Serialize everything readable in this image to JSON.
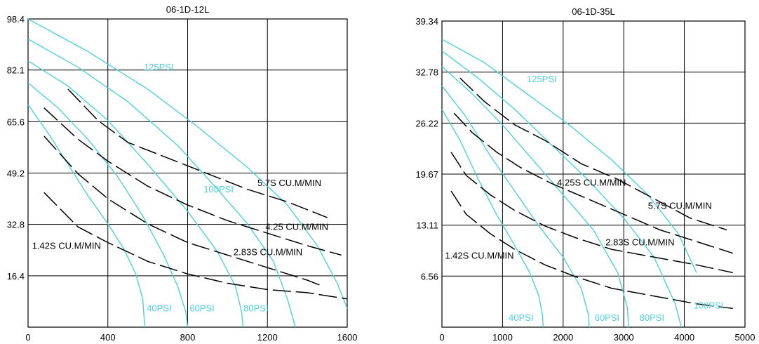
{
  "chart_data": [
    {
      "type": "line",
      "title": "06-1D-12L",
      "xlim": [
        0,
        1600
      ],
      "ylim": [
        0,
        98.4
      ],
      "x_ticks": [
        "0",
        "400",
        "800",
        "1200",
        "1600"
      ],
      "x_tick_values": [
        0,
        400,
        800,
        1200,
        1600
      ],
      "y_ticks": [
        "16.4",
        "32.8",
        "49.2",
        "65.6",
        "82.1",
        "98.4"
      ],
      "y_tick_values": [
        16.4,
        32.8,
        49.2,
        65.6,
        82.1,
        98.4
      ],
      "grid": true,
      "pressure_series": [
        {
          "name": "40PSI",
          "points": [
            [
              0,
              71
            ],
            [
              100,
              62
            ],
            [
              200,
              52
            ],
            [
              300,
              42
            ],
            [
              400,
              33
            ],
            [
              480,
              25
            ],
            [
              540,
              17
            ],
            [
              575,
              9
            ],
            [
              585,
              0
            ]
          ]
        },
        {
          "name": "60PSI",
          "points": [
            [
              0,
              78
            ],
            [
              150,
              70
            ],
            [
              300,
              60
            ],
            [
              450,
              48
            ],
            [
              580,
              35
            ],
            [
              680,
              23
            ],
            [
              750,
              13
            ],
            [
              790,
              5
            ],
            [
              800,
              0
            ]
          ]
        },
        {
          "name": "80PSI",
          "points": [
            [
              0,
              85
            ],
            [
              200,
              77
            ],
            [
              400,
              66
            ],
            [
              600,
              52
            ],
            [
              800,
              37
            ],
            [
              950,
              24
            ],
            [
              1040,
              13
            ],
            [
              1070,
              5
            ],
            [
              1078,
              0
            ]
          ]
        },
        {
          "name": "100PSI",
          "points": [
            [
              0,
              92
            ],
            [
              250,
              83
            ],
            [
              500,
              72
            ],
            [
              750,
              58
            ],
            [
              950,
              44
            ],
            [
              1100,
              33
            ],
            [
              1230,
              21
            ],
            [
              1300,
              9
            ],
            [
              1340,
              0
            ]
          ]
        },
        {
          "name": "125PSI",
          "points": [
            [
              0,
              98.4
            ],
            [
              300,
              88
            ],
            [
              600,
              76
            ],
            [
              850,
              64
            ],
            [
              1100,
              51
            ],
            [
              1300,
              39
            ],
            [
              1450,
              26
            ],
            [
              1550,
              14
            ],
            [
              1600,
              6
            ]
          ]
        }
      ],
      "flow_series": [
        {
          "name": "1.42S CU.M/MIN",
          "points": [
            [
              80,
              43
            ],
            [
              250,
              32
            ],
            [
              400,
              27
            ],
            [
              600,
              21
            ],
            [
              800,
              17
            ],
            [
              1000,
              14
            ],
            [
              1200,
              12
            ],
            [
              1400,
              11
            ],
            [
              1600,
              9
            ]
          ]
        },
        {
          "name": "2.83S CU.M/MIN",
          "points": [
            [
              80,
              61
            ],
            [
              250,
              49
            ],
            [
              400,
              41
            ],
            [
              600,
              33
            ],
            [
              800,
              27
            ],
            [
              1000,
              23
            ],
            [
              1200,
              19
            ],
            [
              1400,
              15
            ],
            [
              1480,
              13
            ]
          ]
        },
        {
          "name": "4.25 CU.M/MIN",
          "points": [
            [
              80,
              70
            ],
            [
              250,
              60
            ],
            [
              400,
              53
            ],
            [
              600,
              45
            ],
            [
              800,
              39
            ],
            [
              1000,
              34
            ],
            [
              1200,
              30
            ],
            [
              1400,
              26
            ],
            [
              1570,
              23
            ]
          ]
        },
        {
          "name": "5.7S CU.M/MIN",
          "points": [
            [
              200,
              76
            ],
            [
              350,
              66
            ],
            [
              500,
              59
            ],
            [
              700,
              54
            ],
            [
              900,
              49
            ],
            [
              1100,
              44
            ],
            [
              1300,
              40
            ],
            [
              1500,
              35
            ]
          ]
        }
      ],
      "pressure_labels": [
        {
          "text": "125PSI",
          "x": 580,
          "y": 82
        },
        {
          "text": "100PSI",
          "x": 880,
          "y": 43
        },
        {
          "text": "40PSI",
          "x": 595,
          "y": 5
        },
        {
          "text": "60PSI",
          "x": 810,
          "y": 5
        },
        {
          "text": "80PSI",
          "x": 1080,
          "y": 5
        }
      ],
      "flow_labels": [
        {
          "text": "5.7S CU.M/MIN",
          "x": 1150,
          "y": 45
        },
        {
          "text": "4.25 CU.M/MIN",
          "x": 1190,
          "y": 31
        },
        {
          "text": "2.83S CU.M/MIN",
          "x": 1030,
          "y": 23
        },
        {
          "text": "1.42S CU.M/MIN",
          "x": 20,
          "y": 25
        }
      ]
    },
    {
      "type": "line",
      "title": "06-1D-35L",
      "xlim": [
        0,
        5000
      ],
      "ylim": [
        0,
        39.34
      ],
      "x_ticks": [
        "0",
        "1000",
        "2000",
        "3000",
        "4000",
        "5000"
      ],
      "x_tick_values": [
        0,
        1000,
        2000,
        3000,
        4000,
        5000
      ],
      "y_ticks": [
        "6.56",
        "13.11",
        "19.67",
        "26.22",
        "32.78",
        "39.34"
      ],
      "y_tick_values": [
        6.56,
        13.11,
        19.67,
        26.22,
        32.78,
        39.34
      ],
      "grid": true,
      "pressure_series": [
        {
          "name": "40PSI",
          "points": [
            [
              0,
              28
            ],
            [
              300,
              24
            ],
            [
              600,
              19
            ],
            [
              900,
              14.5
            ],
            [
              1200,
              10.5
            ],
            [
              1450,
              7
            ],
            [
              1600,
              4
            ],
            [
              1660,
              1.5
            ],
            [
              1670,
              0
            ]
          ]
        },
        {
          "name": "60PSI",
          "points": [
            [
              0,
              31
            ],
            [
              400,
              27
            ],
            [
              800,
              22
            ],
            [
              1200,
              17.5
            ],
            [
              1600,
              13
            ],
            [
              2000,
              9
            ],
            [
              2300,
              5
            ],
            [
              2420,
              1.5
            ],
            [
              2430,
              0
            ]
          ]
        },
        {
          "name": "80PSI",
          "points": [
            [
              0,
              33.5
            ],
            [
              500,
              30
            ],
            [
              1000,
              26
            ],
            [
              1500,
              21.5
            ],
            [
              2000,
              17
            ],
            [
              2500,
              12.5
            ],
            [
              2900,
              7
            ],
            [
              3060,
              2.5
            ],
            [
              3080,
              0
            ]
          ]
        },
        {
          "name": "100PSI",
          "points": [
            [
              0,
              35.5
            ],
            [
              600,
              32
            ],
            [
              1200,
              28
            ],
            [
              1800,
              23.5
            ],
            [
              2400,
              19
            ],
            [
              3000,
              14
            ],
            [
              3500,
              9
            ],
            [
              3850,
              3
            ],
            [
              3950,
              0
            ]
          ]
        },
        {
          "name": "125PSI",
          "points": [
            [
              0,
              37
            ],
            [
              700,
              34
            ],
            [
              1400,
              30
            ],
            [
              2100,
              26
            ],
            [
              2800,
              21.5
            ],
            [
              3400,
              17
            ],
            [
              3900,
              12
            ],
            [
              4200,
              7
            ]
          ]
        }
      ],
      "flow_series": [
        {
          "name": "1.42S CU.M/MIN",
          "points": [
            [
              150,
              17.5
            ],
            [
              400,
              14.5
            ],
            [
              800,
              12
            ],
            [
              1200,
              10
            ],
            [
              1700,
              8
            ],
            [
              2200,
              6.5
            ],
            [
              2800,
              5
            ],
            [
              3500,
              4
            ],
            [
              4200,
              3
            ],
            [
              4800,
              2.4
            ]
          ]
        },
        {
          "name": "2.83S CU.M/MIN",
          "points": [
            [
              150,
              22.5
            ],
            [
              400,
              19.5
            ],
            [
              800,
              17
            ],
            [
              1200,
              15
            ],
            [
              1700,
              13
            ],
            [
              2200,
              11.5
            ],
            [
              2800,
              10
            ],
            [
              3500,
              9
            ],
            [
              4200,
              8
            ],
            [
              4800,
              7
            ]
          ]
        },
        {
          "name": "4.25S CU.M/MIN",
          "points": [
            [
              200,
              27.5
            ],
            [
              500,
              25
            ],
            [
              900,
              22.5
            ],
            [
              1300,
              20.5
            ],
            [
              1800,
              18.5
            ],
            [
              2400,
              16.5
            ],
            [
              3000,
              14.5
            ],
            [
              3600,
              12.5
            ],
            [
              4200,
              11
            ],
            [
              4800,
              9.5
            ]
          ]
        },
        {
          "name": "5.7S CU.M/MIN",
          "points": [
            [
              300,
              32
            ],
            [
              700,
              29
            ],
            [
              1200,
              26
            ],
            [
              1700,
              24
            ],
            [
              2300,
              21
            ],
            [
              2900,
              19
            ],
            [
              3500,
              16.5
            ],
            [
              4100,
              14
            ],
            [
              4700,
              12.5
            ]
          ]
        }
      ],
      "pressure_labels": [
        {
          "text": "125PSI",
          "x": 1400,
          "y": 31.5
        },
        {
          "text": "100PSI",
          "x": 4150,
          "y": 2.4
        },
        {
          "text": "40PSI",
          "x": 1100,
          "y": 0.8
        },
        {
          "text": "60PSI",
          "x": 2520,
          "y": 0.8
        },
        {
          "text": "80PSI",
          "x": 3260,
          "y": 0.8
        }
      ],
      "flow_labels": [
        {
          "text": "4.25S CU.M/MIN",
          "x": 1900,
          "y": 18.2
        },
        {
          "text": "5.7S CU.M/MIN",
          "x": 3400,
          "y": 15.2
        },
        {
          "text": "2.83S CU.M/MIN",
          "x": 2700,
          "y": 10.5
        },
        {
          "text": "1.42S CU.M/MIN",
          "x": 50,
          "y": 8.8
        }
      ]
    }
  ]
}
